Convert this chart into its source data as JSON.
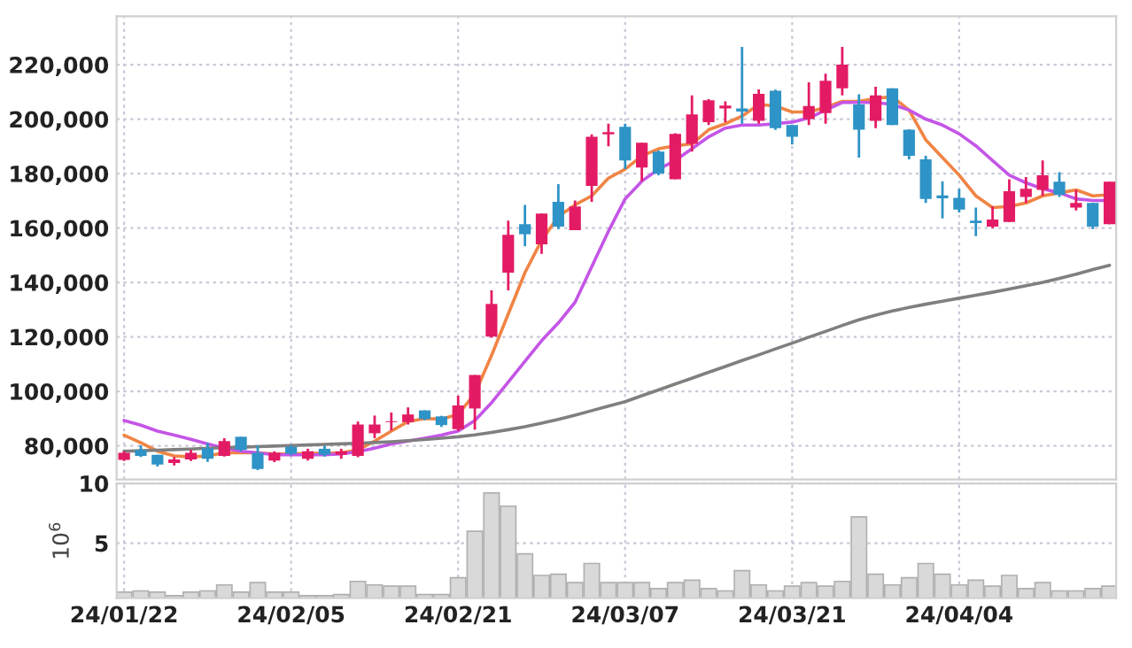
{
  "chart_data": [
    {
      "type": "candlestick",
      "categories": [
        null,
        null,
        null,
        null,
        null,
        null,
        null,
        null,
        null,
        null,
        null,
        null,
        null,
        null,
        null,
        null,
        null,
        null,
        null,
        null,
        null,
        null,
        null,
        null,
        null,
        null,
        null,
        null,
        null,
        null,
        null,
        null,
        null,
        null,
        null,
        null,
        null,
        null,
        null,
        null,
        null,
        null,
        null,
        null,
        null,
        null,
        null,
        null,
        null,
        null,
        null,
        null,
        null,
        null,
        null,
        null,
        null,
        null,
        null,
        null
      ],
      "ohlc": [
        [
          74800,
          78000,
          74400,
          77400
        ],
        [
          78500,
          80200,
          75900,
          76300
        ],
        [
          76700,
          76700,
          72400,
          73100
        ],
        [
          73700,
          75900,
          72800,
          75000
        ],
        [
          75000,
          78500,
          74400,
          77400
        ],
        [
          79100,
          81100,
          74100,
          75200
        ],
        [
          76300,
          82800,
          76000,
          81700
        ],
        [
          83300,
          83300,
          78000,
          78500
        ],
        [
          77400,
          80200,
          71100,
          71500
        ],
        [
          74600,
          78000,
          74000,
          77400
        ],
        [
          79600,
          80200,
          76500,
          77000
        ],
        [
          75200,
          78900,
          74600,
          78000
        ],
        [
          78900,
          80000,
          76000,
          76700
        ],
        [
          76700,
          78900,
          75200,
          78000
        ],
        [
          76300,
          88900,
          75800,
          87800
        ],
        [
          84600,
          91100,
          82800,
          87800
        ],
        [
          88700,
          92200,
          85600,
          89000
        ],
        [
          88700,
          94100,
          87800,
          91500
        ],
        [
          93000,
          93000,
          89400,
          89800
        ],
        [
          90800,
          91000,
          86900,
          87600
        ],
        [
          86100,
          98400,
          85400,
          94800
        ],
        [
          93700,
          106000,
          85900,
          106000
        ],
        [
          120100,
          137100,
          119700,
          132100
        ],
        [
          143600,
          162700,
          137100,
          157500
        ],
        [
          161400,
          168500,
          153300,
          157700
        ],
        [
          154000,
          165300,
          150500,
          165300
        ],
        [
          169600,
          176100,
          159600,
          160500
        ],
        [
          159200,
          170100,
          159200,
          167900
        ],
        [
          175500,
          194400,
          169600,
          193500
        ],
        [
          194400,
          198300,
          190000,
          195200
        ],
        [
          197200,
          198300,
          181600,
          184800
        ],
        [
          182200,
          191300,
          177200,
          191300
        ],
        [
          188100,
          188500,
          179400,
          180000
        ],
        [
          177900,
          194800,
          177900,
          194600
        ],
        [
          190900,
          208700,
          188100,
          201700
        ],
        [
          198900,
          207300,
          197800,
          206900
        ],
        [
          203900,
          206500,
          198900,
          205000
        ],
        [
          203900,
          226500,
          198300,
          202800
        ],
        [
          199400,
          210900,
          198300,
          209300
        ],
        [
          210400,
          210800,
          196000,
          196700
        ],
        [
          197800,
          198000,
          190700,
          193500
        ],
        [
          200000,
          213500,
          197800,
          204800
        ],
        [
          202200,
          216700,
          198300,
          214100
        ],
        [
          211300,
          226500,
          208700,
          220000
        ],
        [
          205400,
          209100,
          185900,
          196100
        ],
        [
          199400,
          211900,
          196700,
          208700
        ],
        [
          211300,
          211300,
          197800,
          197800
        ],
        [
          196100,
          196300,
          185200,
          186500
        ],
        [
          185200,
          186500,
          169200,
          170700
        ],
        [
          172000,
          177200,
          163500,
          170900
        ],
        [
          171100,
          174400,
          165700,
          166800
        ],
        [
          162700,
          167500,
          157000,
          161800
        ],
        [
          160500,
          167900,
          159900,
          163100
        ],
        [
          162200,
          177900,
          162200,
          173500
        ],
        [
          171400,
          178700,
          169200,
          174400
        ],
        [
          174000,
          184800,
          171800,
          179400
        ],
        [
          177000,
          180500,
          171400,
          172200
        ],
        [
          167500,
          174000,
          166400,
          169200
        ],
        [
          169200,
          169200,
          159600,
          160500
        ],
        [
          161400,
          177000,
          161400,
          177000
        ]
      ],
      "colors": [
        "#e31b64",
        "#2e93c6",
        "#2e93c6",
        "#e31b64",
        "#e31b64",
        "#2e93c6",
        "#e31b64",
        "#2e93c6",
        "#2e93c6",
        "#e31b64",
        "#2e93c6",
        "#e31b64",
        "#2e93c6",
        "#e31b64",
        "#e31b64",
        "#e31b64",
        "#e31b64",
        "#e31b64",
        "#2e93c6",
        "#2e93c6",
        "#e31b64",
        "#e31b64",
        "#e31b64",
        "#e31b64",
        "#2e93c6",
        "#e31b64",
        "#2e93c6",
        "#e31b64",
        "#e31b64",
        "#e31b64",
        "#2e93c6",
        "#e31b64",
        "#2e93c6",
        "#e31b64",
        "#e31b64",
        "#e31b64",
        "#e31b64",
        "#2e93c6",
        "#e31b64",
        "#2e93c6",
        "#2e93c6",
        "#e31b64",
        "#e31b64",
        "#e31b64",
        "#2e93c6",
        "#e31b64",
        "#2e93c6",
        "#2e93c6",
        "#2e93c6",
        "#2e93c6",
        "#2e93c6",
        "#2e93c6",
        "#e31b64",
        "#e31b64",
        "#e31b64",
        "#e31b64",
        "#2e93c6",
        "#e31b64",
        "#2e93c6",
        "#e31b64"
      ],
      "series": [
        {
          "type": "line",
          "color": "#f08444",
          "values": [
            83900,
            81100,
            78000,
            76300,
            75900,
            76300,
            77400,
            77400,
            77400,
            77000,
            77000,
            77200,
            77200,
            77400,
            78500,
            81700,
            85400,
            88900,
            90000,
            89800,
            91500,
            99100,
            113200,
            128400,
            143600,
            155500,
            164200,
            168500,
            171800,
            178300,
            181600,
            186500,
            189100,
            190200,
            190900,
            196100,
            198300,
            201100,
            205400,
            204800,
            202600,
            202600,
            204300,
            206500,
            206500,
            207600,
            208200,
            203300,
            192400,
            185900,
            179400,
            171800,
            167500,
            167900,
            169200,
            171800,
            172900,
            174000,
            171800,
            172200
          ]
        },
        {
          "type": "line",
          "color": "#c455e6",
          "values": [
            89300,
            87600,
            85400,
            83900,
            82400,
            80700,
            79100,
            78000,
            77400,
            76700,
            76700,
            76700,
            76700,
            77000,
            77800,
            79100,
            80700,
            81700,
            82800,
            83900,
            85400,
            89300,
            95800,
            103400,
            111000,
            118600,
            125100,
            132700,
            145800,
            158800,
            170700,
            177200,
            181600,
            184800,
            189100,
            193500,
            196700,
            197800,
            197800,
            198300,
            198900,
            200400,
            203300,
            206100,
            206100,
            206100,
            205400,
            203300,
            200000,
            197800,
            194600,
            190200,
            184800,
            179400,
            176600,
            174400,
            172900,
            170700,
            170100,
            170100
          ]
        },
        {
          "type": "line",
          "color": "#7f7f7f",
          "values": [
            78000,
            78200,
            78400,
            78600,
            78800,
            79100,
            79300,
            79500,
            79700,
            79900,
            80100,
            80300,
            80500,
            80700,
            80900,
            81200,
            81500,
            81900,
            82300,
            82800,
            83300,
            84000,
            84900,
            85900,
            87000,
            88300,
            89700,
            91200,
            92900,
            94600,
            96200,
            98400,
            100500,
            102700,
            104800,
            107000,
            109100,
            111300,
            113400,
            115600,
            117700,
            119900,
            122000,
            124200,
            126300,
            128000,
            129500,
            130800,
            132000,
            133100,
            134200,
            135300,
            136400,
            137600,
            138800,
            140000,
            141500,
            143000,
            144700,
            146300
          ]
        }
      ],
      "ylim": [
        67600,
        237800
      ],
      "yticks": [
        {
          "value": 80000,
          "label": "80,000"
        },
        {
          "value": 100000,
          "label": "100,000"
        },
        {
          "value": 120000,
          "label": "120,000"
        },
        {
          "value": 140000,
          "label": "140,000"
        },
        {
          "value": 160000,
          "label": "160,000"
        },
        {
          "value": 180000,
          "label": "180,000"
        },
        {
          "value": 200000,
          "label": "200,000"
        },
        {
          "value": 220000,
          "label": "220,000"
        }
      ],
      "grid": true,
      "tick_labels": "y"
    },
    {
      "type": "bar",
      "categories": [
        "24/01/22",
        null,
        null,
        null,
        null,
        null,
        null,
        null,
        null,
        null,
        "24/02/05",
        null,
        null,
        null,
        null,
        null,
        null,
        null,
        null,
        null,
        "24/02/21",
        null,
        null,
        null,
        null,
        null,
        null,
        null,
        null,
        null,
        "24/03/07",
        null,
        null,
        null,
        null,
        null,
        null,
        null,
        null,
        null,
        "24/03/21",
        null,
        null,
        null,
        null,
        null,
        null,
        null,
        null,
        null,
        "24/04/04",
        null,
        null,
        null,
        null,
        null,
        null,
        null,
        null,
        null
      ],
      "values": [
        0.9,
        1.0,
        0.9,
        0.6,
        0.9,
        1.0,
        1.5,
        0.9,
        1.7,
        0.9,
        0.9,
        0.6,
        0.6,
        0.7,
        1.8,
        1.5,
        1.4,
        1.4,
        0.7,
        0.7,
        2.1,
        6.0,
        9.2,
        8.1,
        4.1,
        2.3,
        2.4,
        1.7,
        3.3,
        1.7,
        1.7,
        1.7,
        1.2,
        1.7,
        1.9,
        1.2,
        1.0,
        2.7,
        1.5,
        1.0,
        1.4,
        1.7,
        1.4,
        1.8,
        7.2,
        2.4,
        1.5,
        2.1,
        3.3,
        2.4,
        1.5,
        1.9,
        1.4,
        2.3,
        1.2,
        1.7,
        1.0,
        1.0,
        1.2,
        1.4
      ],
      "color": "#d9d9d9",
      "ylim": [
        0.4,
        10
      ],
      "yticks": [
        5,
        10
      ],
      "ylabel": "10$^{6}$",
      "grid": true
    }
  ]
}
